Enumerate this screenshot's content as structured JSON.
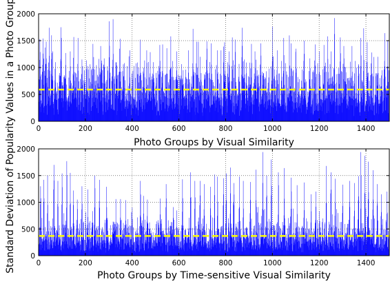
{
  "figure": {
    "ylabel": "Standard Deviation of Popularity Values in a Photo Group"
  },
  "colors": {
    "bars": "#0000ff",
    "mean_line": "#ffff00",
    "grid": "#555555",
    "axes": "#000000"
  },
  "chart_data": [
    {
      "type": "bar",
      "xlabel": "Photo Groups by Visual Similarity",
      "xlim": [
        0,
        1500
      ],
      "ylim": [
        0,
        2000
      ],
      "xticks": [
        "0",
        "200",
        "400",
        "600",
        "800",
        "1000",
        "1200",
        "1400"
      ],
      "yticks": [
        "0",
        "500",
        "1000",
        "1500",
        "2000"
      ],
      "grid": true,
      "num_groups": 1500,
      "mean_line": 590,
      "series": [
        {
          "peaks": [
            [
              5,
              1530
            ],
            [
              18,
              1540
            ],
            [
              32,
              1480
            ],
            [
              45,
              1740
            ],
            [
              55,
              1600
            ],
            [
              60,
              1300
            ],
            [
              72,
              1100
            ],
            [
              95,
              1750
            ],
            [
              115,
              1270
            ],
            [
              135,
              1300
            ],
            [
              148,
              1180
            ],
            [
              168,
              1550
            ],
            [
              185,
              1150
            ],
            [
              220,
              1060
            ],
            [
              232,
              1440
            ],
            [
              258,
              1160
            ],
            [
              265,
              1400
            ],
            [
              280,
              1170
            ],
            [
              302,
              1860
            ],
            [
              318,
              1900
            ],
            [
              332,
              1100
            ],
            [
              345,
              1350
            ],
            [
              362,
              1060
            ],
            [
              390,
              1320
            ],
            [
              435,
              1520
            ],
            [
              462,
              1320
            ],
            [
              490,
              1100
            ],
            [
              518,
              1420
            ],
            [
              530,
              1430
            ],
            [
              548,
              1360
            ],
            [
              565,
              1580
            ],
            [
              590,
              1300
            ],
            [
              640,
              1320
            ],
            [
              660,
              1720
            ],
            [
              675,
              1480
            ],
            [
              690,
              1200
            ],
            [
              720,
              1350
            ],
            [
              738,
              1450
            ],
            [
              765,
              1320
            ],
            [
              795,
              1470
            ],
            [
              815,
              1300
            ],
            [
              828,
              1560
            ],
            [
              840,
              1520
            ],
            [
              870,
              1740
            ],
            [
              880,
              1150
            ],
            [
              910,
              1440
            ],
            [
              925,
              1300
            ],
            [
              950,
              1450
            ],
            [
              1000,
              1760
            ],
            [
              1020,
              1320
            ],
            [
              1048,
              1550
            ],
            [
              1080,
              1450
            ],
            [
              1100,
              1350
            ],
            [
              1135,
              1500
            ],
            [
              1160,
              1170
            ],
            [
              1182,
              1430
            ],
            [
              1200,
              1300
            ],
            [
              1220,
              1420
            ],
            [
              1236,
              1580
            ],
            [
              1250,
              1300
            ],
            [
              1265,
              1920
            ],
            [
              1290,
              1560
            ],
            [
              1305,
              1400
            ],
            [
              1340,
              1400
            ],
            [
              1378,
              1550
            ],
            [
              1390,
              1730
            ],
            [
              1405,
              1470
            ],
            [
              1425,
              1280
            ],
            [
              1450,
              1200
            ],
            [
              1480,
              1640
            ],
            [
              1492,
              1500
            ]
          ]
        }
      ]
    },
    {
      "type": "bar",
      "xlabel": "Photo Groups by Time-sensitive Visual Similarity",
      "xlim": [
        0,
        1500
      ],
      "ylim": [
        0,
        2000
      ],
      "xticks": [
        "0",
        "200",
        "400",
        "600",
        "800",
        "1000",
        "1200",
        "1400"
      ],
      "yticks": [
        "0",
        "500",
        "1000",
        "1500",
        "2000"
      ],
      "grid": true,
      "num_groups": 1500,
      "mean_line": 370,
      "series": [
        {
          "peaks": [
            [
              8,
              1300
            ],
            [
              22,
              1420
            ],
            [
              38,
              1500
            ],
            [
              65,
              1700
            ],
            [
              82,
              1400
            ],
            [
              100,
              1540
            ],
            [
              120,
              1770
            ],
            [
              135,
              1550
            ],
            [
              148,
              1220
            ],
            [
              165,
              1050
            ],
            [
              185,
              1300
            ],
            [
              210,
              1240
            ],
            [
              240,
              1500
            ],
            [
              260,
              1420
            ],
            [
              290,
              1290
            ],
            [
              330,
              1060
            ],
            [
              350,
              1060
            ],
            [
              372,
              1040
            ],
            [
              400,
              900
            ],
            [
              435,
              1400
            ],
            [
              448,
              1120
            ],
            [
              465,
              1050
            ],
            [
              520,
              1070
            ],
            [
              545,
              1340
            ],
            [
              575,
              910
            ],
            [
              615,
              1430
            ],
            [
              650,
              1560
            ],
            [
              668,
              1400
            ],
            [
              690,
              1400
            ],
            [
              708,
              1340
            ],
            [
              735,
              1290
            ],
            [
              752,
              1520
            ],
            [
              765,
              1480
            ],
            [
              790,
              1450
            ],
            [
              802,
              1540
            ],
            [
              820,
              1650
            ],
            [
              835,
              1360
            ],
            [
              858,
              1480
            ],
            [
              875,
              1400
            ],
            [
              905,
              1380
            ],
            [
              930,
              1610
            ],
            [
              958,
              1940
            ],
            [
              975,
              1500
            ],
            [
              995,
              1800
            ],
            [
              1025,
              1560
            ],
            [
              1050,
              1640
            ],
            [
              1080,
              1460
            ],
            [
              1105,
              1320
            ],
            [
              1135,
              1370
            ],
            [
              1165,
              1150
            ],
            [
              1185,
              1200
            ],
            [
              1230,
              1680
            ],
            [
              1250,
              1560
            ],
            [
              1268,
              1440
            ],
            [
              1300,
              1330
            ],
            [
              1330,
              1400
            ],
            [
              1350,
              1360
            ],
            [
              1368,
              1490
            ],
            [
              1378,
              1940
            ],
            [
              1395,
              1870
            ],
            [
              1410,
              1760
            ],
            [
              1430,
              1600
            ],
            [
              1448,
              1340
            ],
            [
              1465,
              1150
            ],
            [
              1490,
              1200
            ]
          ]
        }
      ]
    }
  ]
}
